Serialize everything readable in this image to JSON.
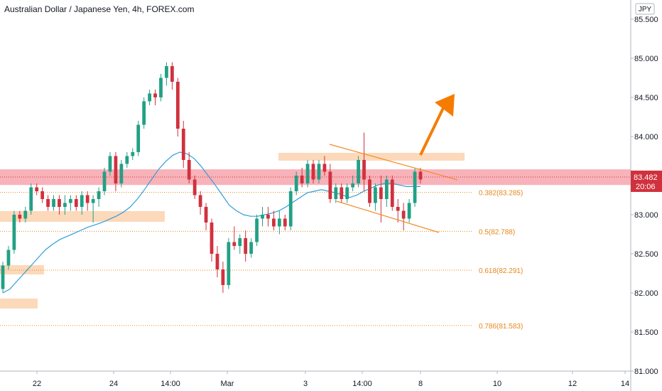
{
  "chart_data": {
    "type": "candlestick",
    "title": "Australian Dollar / Japanese Yen, 4h, FOREX.com",
    "currency": "JPY",
    "ylim": [
      81.0,
      85.6
    ],
    "y_ticks": [
      "85.500",
      "85.000",
      "84.500",
      "84.000",
      "83.500",
      "83.000",
      "82.500",
      "82.000",
      "81.500",
      "81.000"
    ],
    "x_ticks": [
      "22",
      "24",
      "14:00",
      "Mar",
      "3",
      "14:00",
      "8",
      "10",
      "12",
      "14"
    ],
    "current_price": {
      "value": "83.482",
      "countdown": "20:06"
    },
    "resistance_zone": [
      83.38,
      83.58
    ],
    "fib_levels": [
      {
        "label": "0.382(83.285)",
        "value": 83.285
      },
      {
        "label": "0.5(82.788)",
        "value": 82.788
      },
      {
        "label": "0.618(82.291)",
        "value": 82.291
      },
      {
        "label": "0.786(81.583)",
        "value": 81.583
      }
    ],
    "candles": [
      [
        82.05,
        82.4,
        82.0,
        82.35
      ],
      [
        82.35,
        82.6,
        82.3,
        82.55
      ],
      [
        82.55,
        83.05,
        82.5,
        83.0
      ],
      [
        83.0,
        83.05,
        82.9,
        82.95
      ],
      [
        82.95,
        83.1,
        82.9,
        83.05
      ],
      [
        83.05,
        83.4,
        83.0,
        83.35
      ],
      [
        83.35,
        83.4,
        83.25,
        83.3
      ],
      [
        83.3,
        83.35,
        83.15,
        83.2
      ],
      [
        83.2,
        83.25,
        83.05,
        83.1
      ],
      [
        83.1,
        83.25,
        83.05,
        83.2
      ],
      [
        83.2,
        83.25,
        83.0,
        83.1
      ],
      [
        83.1,
        83.25,
        83.0,
        83.15
      ],
      [
        83.15,
        83.25,
        83.05,
        83.2
      ],
      [
        83.2,
        83.25,
        83.05,
        83.1
      ],
      [
        83.1,
        83.3,
        83.0,
        83.25
      ],
      [
        83.25,
        83.3,
        83.05,
        83.15
      ],
      [
        83.15,
        83.25,
        82.9,
        83.2
      ],
      [
        83.2,
        83.35,
        83.1,
        83.3
      ],
      [
        83.3,
        83.6,
        83.25,
        83.55
      ],
      [
        83.55,
        83.8,
        83.5,
        83.75
      ],
      [
        83.75,
        83.8,
        83.3,
        83.4
      ],
      [
        83.4,
        83.7,
        83.35,
        83.65
      ],
      [
        83.65,
        83.8,
        83.6,
        83.75
      ],
      [
        83.75,
        83.85,
        83.7,
        83.8
      ],
      [
        83.8,
        84.2,
        83.75,
        84.15
      ],
      [
        84.15,
        84.5,
        84.1,
        84.45
      ],
      [
        84.45,
        84.6,
        84.4,
        84.55
      ],
      [
        84.55,
        84.6,
        84.4,
        84.5
      ],
      [
        84.5,
        84.8,
        84.45,
        84.75
      ],
      [
        84.75,
        84.95,
        84.65,
        84.9
      ],
      [
        84.9,
        84.95,
        84.6,
        84.7
      ],
      [
        84.7,
        84.75,
        84.0,
        84.1
      ],
      [
        84.1,
        84.2,
        83.6,
        83.7
      ],
      [
        83.7,
        83.8,
        83.4,
        83.45
      ],
      [
        83.45,
        83.5,
        83.2,
        83.25
      ],
      [
        83.25,
        83.3,
        83.0,
        83.1
      ],
      [
        83.1,
        83.15,
        82.8,
        82.9
      ],
      [
        82.9,
        82.95,
        82.4,
        82.5
      ],
      [
        82.5,
        82.6,
        82.2,
        82.3
      ],
      [
        82.3,
        82.4,
        82.0,
        82.1
      ],
      [
        82.1,
        82.7,
        82.05,
        82.65
      ],
      [
        82.65,
        82.85,
        82.55,
        82.6
      ],
      [
        82.6,
        82.75,
        82.5,
        82.7
      ],
      [
        82.7,
        82.8,
        82.4,
        82.5
      ],
      [
        82.5,
        82.7,
        82.45,
        82.65
      ],
      [
        82.65,
        83.0,
        82.6,
        82.95
      ],
      [
        82.95,
        83.1,
        82.85,
        83.0
      ],
      [
        83.0,
        83.1,
        82.85,
        82.95
      ],
      [
        82.95,
        83.05,
        82.8,
        82.85
      ],
      [
        82.85,
        83.05,
        82.75,
        82.95
      ],
      [
        82.95,
        83.0,
        82.8,
        82.85
      ],
      [
        82.85,
        83.35,
        82.8,
        83.3
      ],
      [
        83.3,
        83.55,
        83.25,
        83.5
      ],
      [
        83.5,
        83.6,
        83.35,
        83.4
      ],
      [
        83.4,
        83.7,
        83.35,
        83.65
      ],
      [
        83.65,
        83.7,
        83.4,
        83.45
      ],
      [
        83.45,
        83.7,
        83.4,
        83.65
      ],
      [
        83.65,
        83.75,
        83.5,
        83.55
      ],
      [
        83.55,
        83.65,
        83.15,
        83.2
      ],
      [
        83.2,
        83.4,
        83.15,
        83.35
      ],
      [
        83.35,
        83.4,
        83.15,
        83.2
      ],
      [
        83.2,
        83.4,
        83.15,
        83.35
      ],
      [
        83.35,
        83.5,
        83.3,
        83.4
      ],
      [
        83.4,
        83.75,
        83.35,
        83.7
      ],
      [
        83.7,
        84.05,
        83.3,
        83.45
      ],
      [
        83.45,
        83.5,
        83.1,
        83.15
      ],
      [
        83.15,
        83.4,
        83.05,
        83.35
      ],
      [
        83.35,
        83.5,
        82.9,
        83.2
      ],
      [
        83.2,
        83.5,
        83.1,
        83.45
      ],
      [
        83.45,
        83.5,
        83.05,
        83.1
      ],
      [
        83.1,
        83.2,
        82.9,
        83.05
      ],
      [
        83.05,
        83.15,
        82.8,
        82.95
      ],
      [
        82.95,
        83.2,
        82.9,
        83.15
      ],
      [
        83.15,
        83.6,
        83.1,
        83.55
      ],
      [
        83.55,
        83.6,
        83.4,
        83.45
      ]
    ],
    "ma": [
      82.0,
      82.05,
      82.15,
      82.25,
      82.35,
      82.45,
      82.55,
      82.62,
      82.68,
      82.72,
      82.76,
      82.8,
      82.84,
      82.87,
      82.9,
      82.94,
      82.98,
      83.03,
      83.1,
      83.2,
      83.32,
      83.45,
      83.58,
      83.68,
      83.76,
      83.8,
      83.78,
      83.72,
      83.62,
      83.5,
      83.38,
      83.25,
      83.12,
      83.05,
      83.0,
      82.98,
      82.98,
      83.0,
      83.02,
      83.05,
      83.1,
      83.16,
      83.22,
      83.28,
      83.3,
      83.32,
      83.3,
      83.28,
      83.25,
      83.22,
      83.25,
      83.3,
      83.34,
      83.38,
      83.4,
      83.4,
      83.38,
      83.36,
      83.36,
      83.36
    ]
  }
}
